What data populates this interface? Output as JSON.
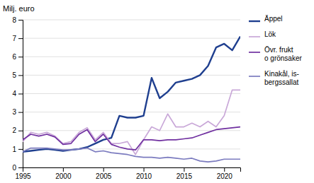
{
  "chart_data": {
    "type": "line",
    "ylabel": "Milj. euro",
    "x": [
      1995,
      1996,
      1997,
      1998,
      1999,
      2000,
      2001,
      2002,
      2003,
      2004,
      2005,
      2006,
      2007,
      2008,
      2009,
      2010,
      2011,
      2012,
      2013,
      2014,
      2015,
      2016,
      2017,
      2018,
      2019,
      2020,
      2021,
      2022
    ],
    "series": [
      {
        "name": "Äppel",
        "color": "#1f3f8f",
        "values": [
          0.85,
          0.9,
          0.95,
          1.0,
          0.95,
          0.9,
          0.95,
          1.0,
          1.1,
          1.3,
          1.5,
          1.6,
          2.8,
          2.7,
          2.7,
          2.8,
          4.85,
          3.75,
          4.1,
          4.6,
          4.7,
          4.8,
          5.0,
          5.5,
          6.5,
          6.7,
          6.35,
          7.1
        ]
      },
      {
        "name": "Lök",
        "color": "#c9a8d8",
        "values": [
          1.4,
          1.9,
          1.8,
          1.9,
          1.7,
          1.3,
          1.4,
          1.9,
          2.15,
          1.5,
          1.9,
          1.3,
          1.3,
          1.4,
          0.7,
          1.5,
          2.2,
          2.0,
          2.9,
          2.2,
          2.2,
          2.4,
          2.2,
          2.5,
          2.2,
          2.8,
          4.2,
          4.2
        ]
      },
      {
        "name": "Övr. frukt\no grönsaker",
        "color": "#7030a0",
        "values": [
          1.5,
          1.8,
          1.7,
          1.8,
          1.65,
          1.25,
          1.3,
          1.8,
          2.05,
          1.4,
          1.8,
          1.25,
          1.1,
          1.0,
          0.95,
          1.5,
          1.5,
          1.45,
          1.5,
          1.5,
          1.55,
          1.6,
          1.75,
          1.9,
          2.05,
          2.1,
          2.15,
          2.2
        ]
      },
      {
        "name": "Kinakål, is-\nbergssallat",
        "color": "#7b7bbf",
        "values": [
          0.85,
          1.05,
          1.05,
          1.05,
          1.0,
          0.95,
          0.95,
          1.0,
          1.05,
          0.85,
          0.9,
          0.8,
          0.75,
          0.7,
          0.6,
          0.55,
          0.55,
          0.5,
          0.55,
          0.5,
          0.45,
          0.5,
          0.35,
          0.3,
          0.35,
          0.45,
          0.45,
          0.45
        ]
      }
    ],
    "xlim": [
      1995,
      2022
    ],
    "xticks": [
      1995,
      2000,
      2005,
      2010,
      2015,
      2020
    ],
    "ylim": [
      0,
      8
    ],
    "yticks": [
      0,
      1,
      2,
      3,
      4,
      5,
      6,
      7,
      8
    ],
    "grid": true,
    "legend": "right"
  }
}
